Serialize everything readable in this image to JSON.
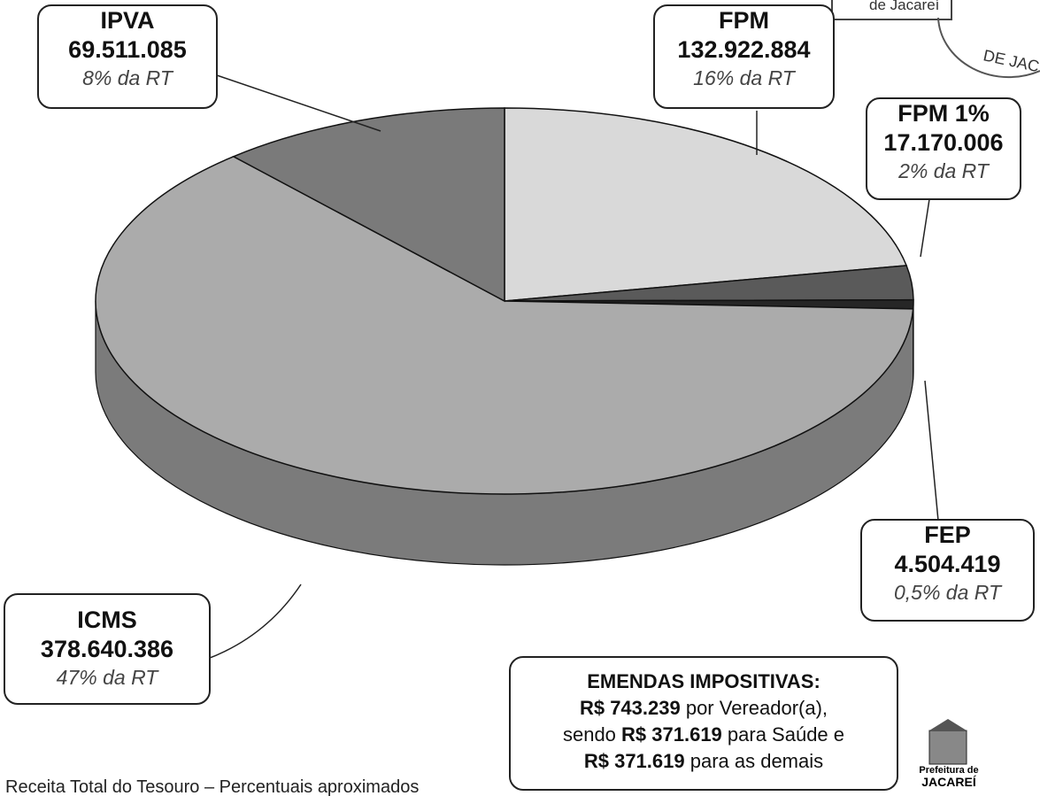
{
  "chart_data": {
    "type": "pie",
    "categories": [
      "FPM",
      "FPM 1%",
      "FEP",
      "ICMS",
      "IPVA"
    ],
    "values": [
      132922884,
      17170006,
      4504419,
      378640386,
      69511085
    ],
    "value_labels": [
      "132.922.884",
      "17.170.006",
      "4.504.419",
      "378.640.386",
      "69.511.085"
    ],
    "share_labels": [
      "16% da RT",
      "2% da RT",
      "0,5% da RT",
      "47% da RT",
      "8% da RT"
    ],
    "colors": [
      "#d9d9d9",
      "#5a5a5a",
      "#262626",
      "#ababab",
      "#7a7a7a"
    ],
    "footnote": "Receita Total do Tesouro – Percentuais aproximados"
  },
  "note": {
    "title": "EMENDAS IMPOSITIVAS:",
    "lines": [
      [
        {
          "text": "R$ 743.239",
          "bold": true
        },
        {
          "text": " por Vereador(a),",
          "bold": false
        }
      ],
      [
        {
          "text": "sendo ",
          "bold": false
        },
        {
          "text": "R$ 371.619",
          "bold": true
        },
        {
          "text": " para Saúde e",
          "bold": false
        }
      ],
      [
        {
          "text": "R$ 371.619",
          "bold": true
        },
        {
          "text": " para as demais",
          "bold": false
        }
      ]
    ]
  },
  "stamp": {
    "line1": "de Jacareí",
    "line2": "DE JAC"
  },
  "logo": {
    "line1": "Prefeitura de",
    "line2": "JACAREÍ"
  }
}
